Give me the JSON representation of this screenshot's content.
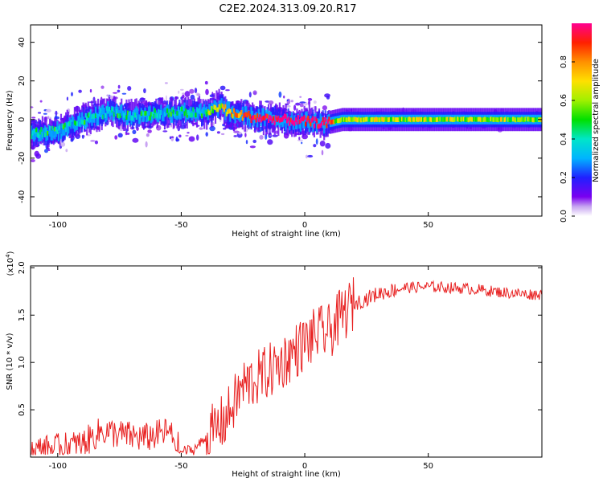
{
  "title": "C2E2.2024.313.09.20.R17",
  "chart_data": [
    {
      "type": "heatmap",
      "xlabel": "Height of straight line (km)",
      "ylabel": "Frequency (Hz)",
      "xlim": [
        -111,
        96
      ],
      "ylim": [
        -50,
        49
      ],
      "xticks": [
        -100,
        -50,
        0,
        50
      ],
      "yticks": [
        -40,
        -20,
        0,
        20,
        40
      ],
      "colorbar": {
        "label": "Normalized spectral amplitude",
        "range": [
          0.0,
          1.0
        ],
        "ticks": [
          0.0,
          0.2,
          0.4,
          0.6,
          0.8
        ],
        "tick_labels": [
          "0.0",
          "0.2",
          "0.4",
          "0.6",
          "0.8"
        ]
      },
      "ridge": {
        "x": [
          -110,
          -100,
          -90,
          -80,
          -70,
          -60,
          -50,
          -40,
          -35,
          -30,
          -20,
          -10,
          0,
          8,
          15,
          30,
          50,
          70,
          96
        ],
        "frequency_hz": [
          -7,
          -6,
          0,
          4,
          2,
          3,
          4,
          3,
          7,
          3,
          1,
          0,
          -1,
          -2,
          0,
          0,
          0,
          0,
          0
        ],
        "amplitude": [
          0.25,
          0.25,
          0.3,
          0.35,
          0.35,
          0.4,
          0.45,
          0.55,
          0.6,
          0.7,
          0.9,
          0.95,
          0.9,
          0.95,
          0.55,
          0.6,
          0.65,
          0.6,
          0.55
        ]
      }
    },
    {
      "type": "line",
      "xlabel": "Height of straight line (km)",
      "ylabel": "SNR (10 * v/v)",
      "multiplier": "(x10",
      "multiplier_exp": "4",
      "xlim": [
        -111,
        96
      ],
      "ylim": [
        0,
        2.02
      ],
      "xticks": [
        -100,
        -50,
        0,
        50
      ],
      "yticks": [
        0.5,
        1.0,
        1.5,
        2.0
      ],
      "ytick_labels": [
        "0.5",
        "1.0",
        "1.5",
        "2.0"
      ],
      "color": "#e82020",
      "series": [
        {
          "x": [
            -110,
            -100,
            -90,
            -82,
            -75,
            -65,
            -55,
            -50,
            -45,
            -38,
            -32,
            -25,
            -18,
            -10,
            -5,
            0,
            5,
            10,
            15,
            20,
            30,
            40,
            50,
            60,
            70,
            80,
            90,
            96
          ],
          "y": [
            0.06,
            0.09,
            0.14,
            0.28,
            0.24,
            0.2,
            0.27,
            0.06,
            0.08,
            0.25,
            0.4,
            0.75,
            0.85,
            0.98,
            1.1,
            1.2,
            1.3,
            1.32,
            1.5,
            1.62,
            1.73,
            1.79,
            1.8,
            1.79,
            1.77,
            1.74,
            1.72,
            1.72
          ]
        }
      ]
    }
  ]
}
